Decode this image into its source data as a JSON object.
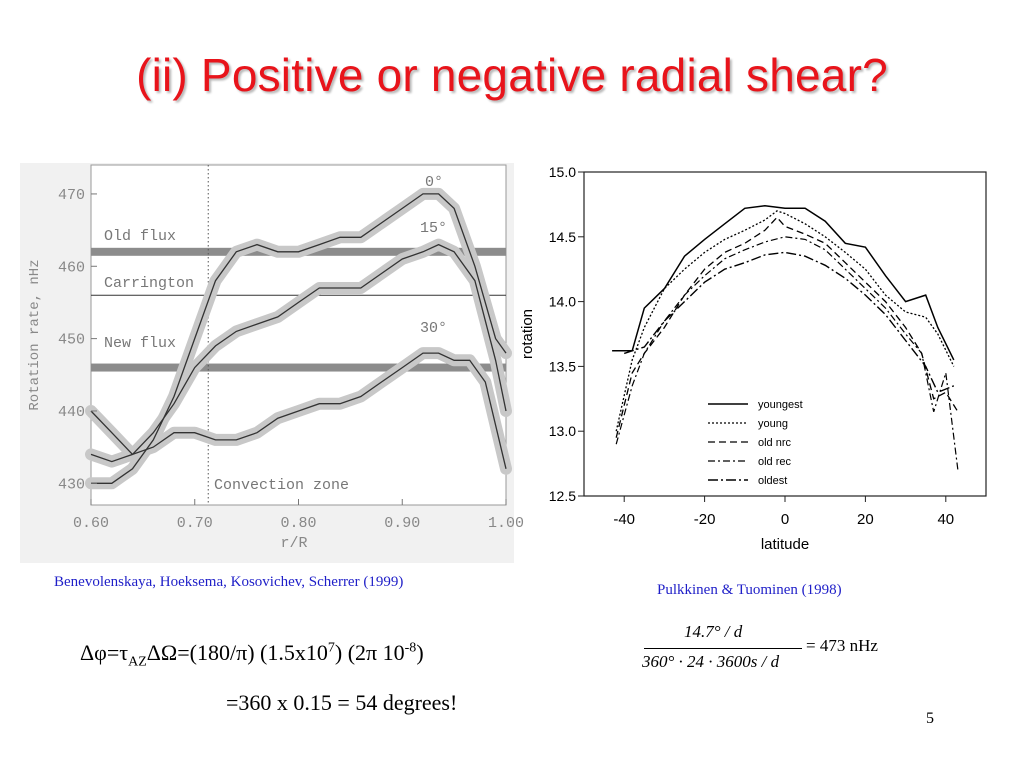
{
  "title": "(ii) Positive or negative radial shear?",
  "slide_number": "5",
  "colors": {
    "title": "#e8141b",
    "caption": "#1f1fc8",
    "left_chart_bg": "#efefef",
    "band": "#8c8c8c"
  },
  "chart_data": [
    {
      "type": "line",
      "xlabel": "r/R",
      "ylabel": "Rotation rate, nHz",
      "xlim": [
        0.6,
        1.0
      ],
      "ylim": [
        427,
        474
      ],
      "x_ticks": [
        "0.60",
        "0.70",
        "0.80",
        "0.90",
        "1.00"
      ],
      "y_ticks": [
        "430",
        "440",
        "450",
        "460",
        "470"
      ],
      "grid": false,
      "annotations": {
        "old_flux": "Old flux",
        "carrington": "Carrington",
        "new_flux": "New flux",
        "convection_zone": "Convection zone",
        "label_0": "0°",
        "label_15": "15°",
        "label_30": "30°"
      },
      "reference_lines": {
        "old_flux": 462,
        "carrington": 456,
        "new_flux": 446,
        "convection_boundary": 0.713
      },
      "series": [
        {
          "label": "0°",
          "x": [
            0.6,
            0.62,
            0.64,
            0.66,
            0.68,
            0.7,
            0.72,
            0.74,
            0.76,
            0.78,
            0.8,
            0.82,
            0.84,
            0.86,
            0.88,
            0.9,
            0.92,
            0.935,
            0.95,
            0.97,
            0.99,
            1.0
          ],
          "y": [
            430,
            430,
            432,
            436,
            442,
            450,
            458,
            462,
            463,
            462,
            462,
            463,
            464,
            464,
            466,
            468,
            470,
            470,
            468,
            460,
            450,
            448
          ]
        },
        {
          "label": "15°",
          "x": [
            0.6,
            0.62,
            0.64,
            0.66,
            0.68,
            0.7,
            0.72,
            0.74,
            0.76,
            0.78,
            0.8,
            0.82,
            0.84,
            0.86,
            0.88,
            0.9,
            0.92,
            0.935,
            0.95,
            0.97,
            0.99,
            1.0
          ],
          "y": [
            434,
            433,
            434,
            437,
            441,
            446,
            449,
            451,
            452,
            453,
            455,
            457,
            457,
            457,
            459,
            461,
            462,
            463,
            462,
            458,
            447,
            440
          ]
        },
        {
          "label": "30°",
          "x": [
            0.6,
            0.62,
            0.64,
            0.66,
            0.68,
            0.7,
            0.72,
            0.74,
            0.76,
            0.78,
            0.8,
            0.82,
            0.84,
            0.86,
            0.88,
            0.9,
            0.92,
            0.935,
            0.95,
            0.965,
            0.98,
            1.0
          ],
          "y": [
            440,
            437,
            434,
            435,
            437,
            437,
            436,
            436,
            437,
            439,
            440,
            441,
            441,
            442,
            444,
            446,
            448,
            448,
            447,
            447,
            444,
            432
          ]
        }
      ]
    },
    {
      "type": "line",
      "xlabel": "latitude",
      "ylabel": "rotation",
      "xlim": [
        -50,
        50
      ],
      "ylim": [
        12.5,
        15.0
      ],
      "x_ticks": [
        "-40",
        "-20",
        "0",
        "20",
        "40"
      ],
      "y_ticks": [
        "12.5",
        "13.0",
        "13.5",
        "14.0",
        "14.5",
        "15.0"
      ],
      "grid": false,
      "legend_position": "bottom-right",
      "series": [
        {
          "name": "youngest",
          "x": [
            -43,
            -38,
            -35,
            -30,
            -25,
            -20,
            -15,
            -10,
            -5,
            0,
            5,
            10,
            15,
            20,
            25,
            30,
            35,
            38,
            42
          ],
          "y": [
            13.62,
            13.62,
            13.95,
            14.1,
            14.35,
            14.48,
            14.6,
            14.72,
            14.74,
            14.72,
            14.72,
            14.62,
            14.45,
            14.42,
            14.2,
            14.0,
            14.05,
            13.8,
            13.55
          ]
        },
        {
          "name": "young",
          "x": [
            -42,
            -38,
            -35,
            -30,
            -25,
            -20,
            -15,
            -10,
            -5,
            -2,
            0,
            5,
            10,
            15,
            20,
            25,
            30,
            35,
            38,
            42
          ],
          "y": [
            13.0,
            13.55,
            13.8,
            14.1,
            14.25,
            14.38,
            14.48,
            14.55,
            14.63,
            14.7,
            14.68,
            14.6,
            14.5,
            14.38,
            14.25,
            14.05,
            13.92,
            13.88,
            13.75,
            13.5
          ]
        },
        {
          "name": "old nrc",
          "x": [
            -42,
            -38,
            -35,
            -30,
            -25,
            -20,
            -15,
            -10,
            -5,
            -2,
            0,
            5,
            10,
            15,
            20,
            25,
            30,
            34,
            37,
            40,
            43
          ],
          "y": [
            12.95,
            13.45,
            13.6,
            13.8,
            14.05,
            14.25,
            14.38,
            14.45,
            14.55,
            14.65,
            14.58,
            14.52,
            14.45,
            14.3,
            14.15,
            14.0,
            13.8,
            13.6,
            13.25,
            13.3,
            13.15
          ]
        },
        {
          "name": "old rec",
          "x": [
            -42,
            -38,
            -35,
            -30,
            -25,
            -20,
            -15,
            -10,
            -5,
            0,
            5,
            10,
            15,
            20,
            25,
            30,
            34,
            37,
            40,
            43
          ],
          "y": [
            12.9,
            13.35,
            13.6,
            13.85,
            14.05,
            14.2,
            14.33,
            14.4,
            14.46,
            14.5,
            14.48,
            14.4,
            14.25,
            14.1,
            13.95,
            13.75,
            13.6,
            13.15,
            13.45,
            12.7
          ]
        },
        {
          "name": "oldest",
          "x": [
            -40,
            -35,
            -30,
            -25,
            -20,
            -15,
            -10,
            -5,
            0,
            5,
            10,
            15,
            20,
            25,
            30,
            35,
            38,
            42
          ],
          "y": [
            13.6,
            13.65,
            13.85,
            14.0,
            14.15,
            14.25,
            14.3,
            14.36,
            14.38,
            14.35,
            14.28,
            14.18,
            14.05,
            13.9,
            13.7,
            13.5,
            13.3,
            13.35
          ]
        }
      ]
    }
  ],
  "captions": {
    "left": "Benevolenskaya, Hoeksema, Kosovichev, Scherrer (1999)",
    "right": "Pulkkinen & Tuominen (1998)"
  },
  "equation": {
    "line1_prefix": "Δφ=τ",
    "line1_sub": "AZ",
    "line1_mid": "ΔΩ=(180/π) (1.5x10",
    "line1_exp7": "7",
    "line1_mid2": ") (2π 10",
    "line1_exp8": "-8",
    "line1_end": ")",
    "line2": "=360 x 0.15 = 54 degrees!"
  },
  "formula": {
    "numerator": "14.7° / d",
    "denominator": "360° · 24 · 3600s / d",
    "result": "= 473 nHz"
  }
}
